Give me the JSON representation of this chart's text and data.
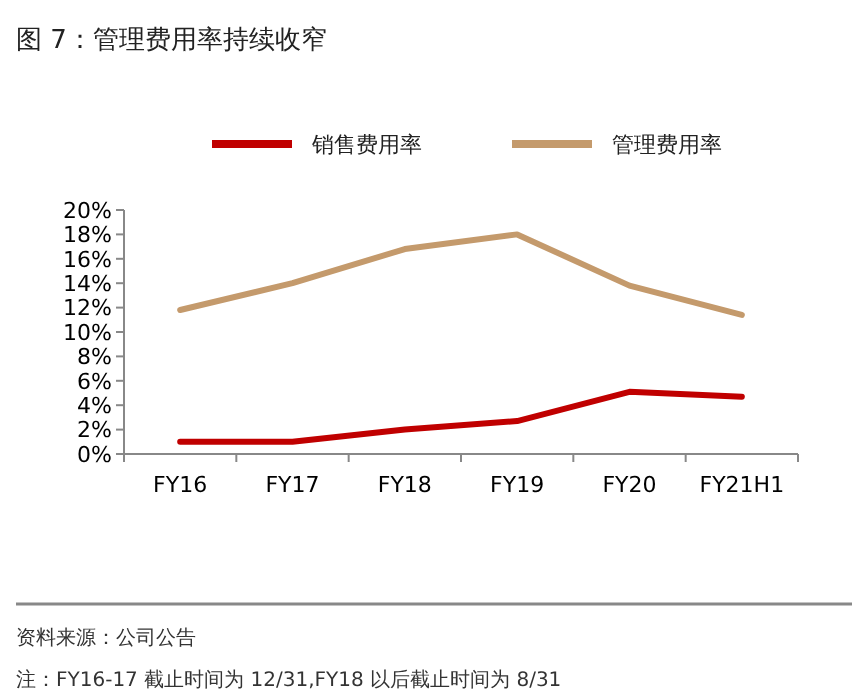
{
  "chart_data": {
    "type": "line",
    "title": "图 7：管理费用率持续收窄",
    "categories": [
      "FY16",
      "FY17",
      "FY18",
      "FY19",
      "FY20",
      "FY21H1"
    ],
    "series": [
      {
        "name": "销售费用率",
        "color": "#c00000",
        "values": [
          1.0,
          1.0,
          2.0,
          2.7,
          5.1,
          4.7
        ]
      },
      {
        "name": "管理费用率",
        "color": "#c49a6c",
        "values": [
          11.8,
          14.0,
          16.8,
          18.0,
          13.8,
          11.4
        ]
      }
    ],
    "ylim": [
      0,
      20
    ],
    "yticks": [
      {
        "value": 0,
        "label": "0%"
      },
      {
        "value": 2,
        "label": "2%"
      },
      {
        "value": 4,
        "label": "4%"
      },
      {
        "value": 6,
        "label": "6%"
      },
      {
        "value": 8,
        "label": "8%"
      },
      {
        "value": 10,
        "label": "10%"
      },
      {
        "value": 12,
        "label": "12%"
      },
      {
        "value": 14,
        "label": "14%"
      },
      {
        "value": 16,
        "label": "16%"
      },
      {
        "value": 18,
        "label": "18%"
      },
      {
        "value": 20,
        "label": "20%"
      }
    ],
    "legend": "top",
    "grid": false,
    "marker": "none",
    "line_style": "solid",
    "annotations": [
      "资料来源：公司公告",
      "注：FY16-17 截止时间为 12/31,FY18 以后截止时间为 8/31"
    ]
  }
}
